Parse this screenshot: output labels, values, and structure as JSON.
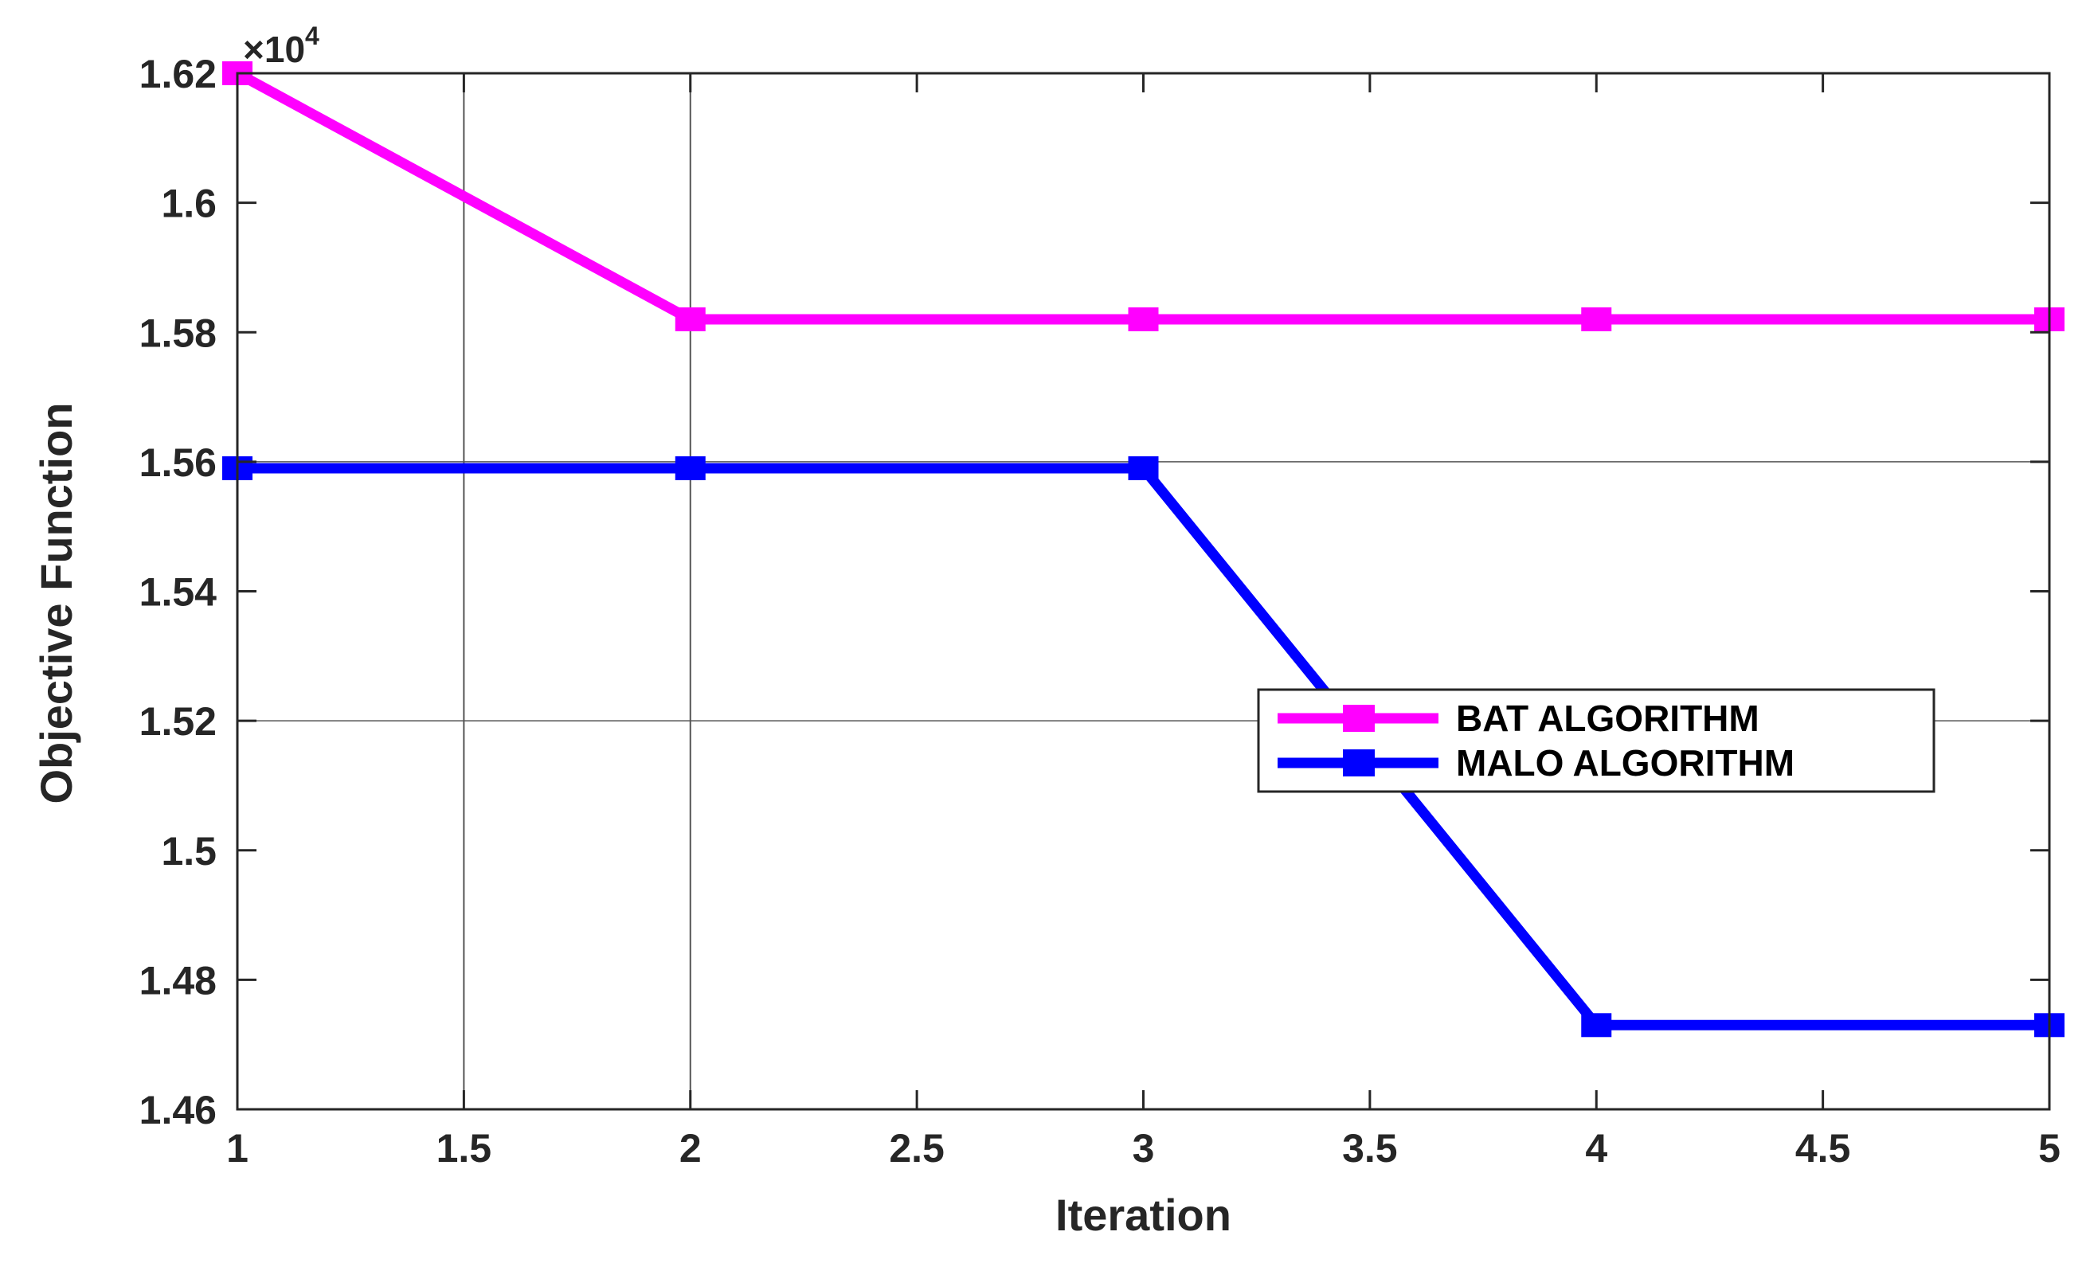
{
  "chart_data": {
    "type": "line",
    "xlabel": "Iteration",
    "ylabel": "Objective Function",
    "xlim": [
      1,
      5
    ],
    "ylim": [
      14600,
      16200
    ],
    "x_ticks": [
      1,
      1.5,
      2,
      2.5,
      3,
      3.5,
      4,
      4.5,
      5
    ],
    "x_tick_labels": [
      "1",
      "1.5",
      "2",
      "2.5",
      "3",
      "3.5",
      "4",
      "4.5",
      "5"
    ],
    "y_ticks": [
      14600,
      14800,
      15000,
      15200,
      15400,
      15600,
      15800,
      16000,
      16200
    ],
    "y_tick_labels": [
      "1.46",
      "1.48",
      "1.5",
      "1.52",
      "1.54",
      "1.56",
      "1.58",
      "1.6",
      "1.62"
    ],
    "y_exponent": {
      "base": "×10",
      "power": "4"
    },
    "x": [
      1,
      2,
      3,
      4,
      5
    ],
    "series": [
      {
        "name": "BAT ALGORITHM",
        "color": "#ff00ff",
        "values": [
          16200,
          15820,
          15820,
          15820,
          15820
        ]
      },
      {
        "name": "MALO ALGORITHM",
        "color": "#0000ff",
        "values": [
          15590,
          15590,
          15590,
          14730,
          14730
        ]
      }
    ],
    "grid_lines": {
      "x": [
        1.5,
        2
      ],
      "y": [
        15200,
        15600
      ]
    },
    "legend_position": "center-right"
  }
}
